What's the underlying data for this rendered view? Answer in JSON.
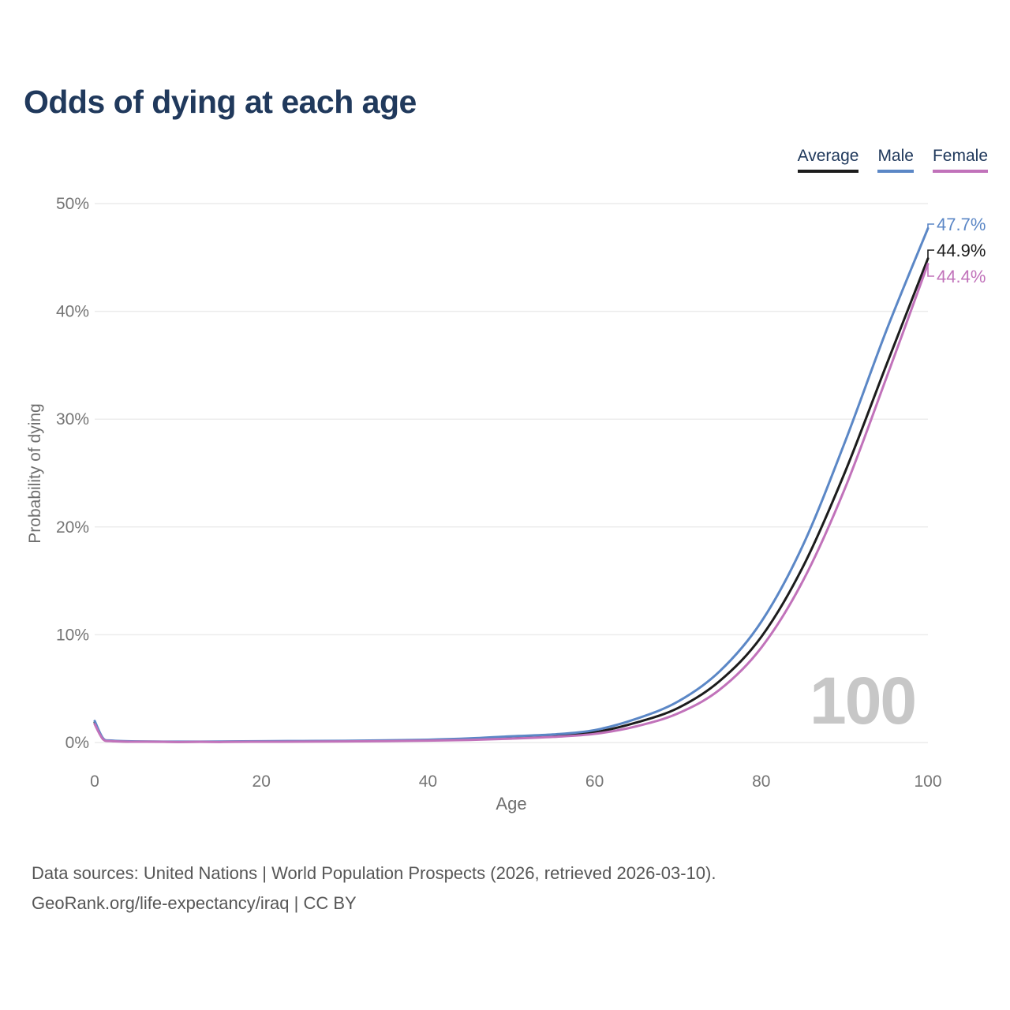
{
  "title": "Odds of dying at each age",
  "watermark": "100",
  "footer": {
    "line1": "Data sources: United Nations | World Population Prospects (2026, retrieved 2026-03-10).",
    "line2": "GeoRank.org/life-expectancy/iraq | CC BY"
  },
  "chart_data": {
    "type": "line",
    "title": "Odds of dying at each age",
    "xlabel": "Age",
    "ylabel": "Probability of dying",
    "xlim": [
      0,
      100
    ],
    "ylim": [
      0,
      50
    ],
    "grid": "horizontal",
    "legend_position": "top-right",
    "gridline_color": "#ececec",
    "xticks": [
      {
        "value": 0,
        "label": "0"
      },
      {
        "value": 20,
        "label": "20"
      },
      {
        "value": 40,
        "label": "40"
      },
      {
        "value": 60,
        "label": "60"
      },
      {
        "value": 80,
        "label": "80"
      },
      {
        "value": 100,
        "label": "100"
      }
    ],
    "yticks": [
      {
        "value": 0,
        "label": "0%"
      },
      {
        "value": 10,
        "label": "10%"
      },
      {
        "value": 20,
        "label": "20%"
      },
      {
        "value": 30,
        "label": "30%"
      },
      {
        "value": 40,
        "label": "40%"
      },
      {
        "value": 50,
        "label": "50%"
      }
    ],
    "series": [
      {
        "name": "Average",
        "color": "#1c1c1c",
        "end_label": "44.9%",
        "points": [
          [
            0,
            1.85
          ],
          [
            1,
            0.35
          ],
          [
            2,
            0.15
          ],
          [
            5,
            0.08
          ],
          [
            10,
            0.06
          ],
          [
            15,
            0.07
          ],
          [
            20,
            0.09
          ],
          [
            25,
            0.11
          ],
          [
            30,
            0.13
          ],
          [
            35,
            0.16
          ],
          [
            40,
            0.21
          ],
          [
            45,
            0.3
          ],
          [
            50,
            0.46
          ],
          [
            55,
            0.62
          ],
          [
            60,
            0.95
          ],
          [
            65,
            1.85
          ],
          [
            70,
            3.2
          ],
          [
            75,
            5.7
          ],
          [
            80,
            9.8
          ],
          [
            85,
            16.3
          ],
          [
            90,
            25.0
          ],
          [
            95,
            35.0
          ],
          [
            100,
            44.9
          ]
        ]
      },
      {
        "name": "Male",
        "color": "#5b87c6",
        "end_label": "47.7%",
        "points": [
          [
            0,
            2.0
          ],
          [
            1,
            0.4
          ],
          [
            2,
            0.18
          ],
          [
            5,
            0.1
          ],
          [
            10,
            0.08
          ],
          [
            15,
            0.09
          ],
          [
            20,
            0.12
          ],
          [
            25,
            0.14
          ],
          [
            30,
            0.16
          ],
          [
            35,
            0.2
          ],
          [
            40,
            0.26
          ],
          [
            45,
            0.38
          ],
          [
            50,
            0.58
          ],
          [
            55,
            0.75
          ],
          [
            60,
            1.15
          ],
          [
            65,
            2.2
          ],
          [
            70,
            3.8
          ],
          [
            75,
            6.6
          ],
          [
            80,
            11.2
          ],
          [
            85,
            18.3
          ],
          [
            90,
            27.8
          ],
          [
            95,
            38.2
          ],
          [
            100,
            47.7
          ]
        ]
      },
      {
        "name": "Female",
        "color": "#c172ba",
        "end_label": "44.4%",
        "points": [
          [
            0,
            1.7
          ],
          [
            1,
            0.3
          ],
          [
            2,
            0.13
          ],
          [
            5,
            0.07
          ],
          [
            10,
            0.05
          ],
          [
            15,
            0.05
          ],
          [
            20,
            0.07
          ],
          [
            25,
            0.08
          ],
          [
            30,
            0.1
          ],
          [
            35,
            0.13
          ],
          [
            40,
            0.17
          ],
          [
            45,
            0.24
          ],
          [
            50,
            0.36
          ],
          [
            55,
            0.52
          ],
          [
            60,
            0.8
          ],
          [
            65,
            1.5
          ],
          [
            70,
            2.7
          ],
          [
            75,
            4.9
          ],
          [
            80,
            8.8
          ],
          [
            85,
            15.0
          ],
          [
            90,
            23.5
          ],
          [
            95,
            33.8
          ],
          [
            100,
            44.4
          ]
        ]
      }
    ]
  }
}
